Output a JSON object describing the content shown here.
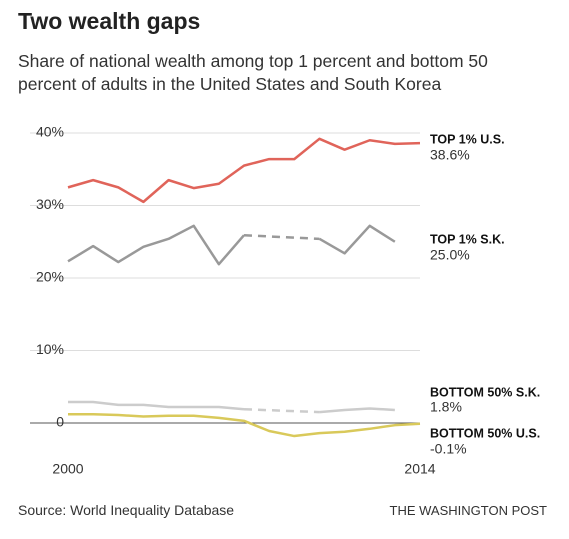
{
  "chart_data": {
    "type": "line",
    "title": "Two wealth gaps",
    "subtitle": "Share of national wealth among top 1 percent and bottom 50 percent of adults in the United States and South Korea",
    "source": "Source: World Inequality Database",
    "credit": "THE WASHINGTON POST",
    "x": [
      2000,
      2001,
      2002,
      2003,
      2004,
      2005,
      2006,
      2007,
      2008,
      2009,
      2010,
      2011,
      2012,
      2013,
      2014
    ],
    "xlim": [
      2000,
      2014
    ],
    "xticks": [
      2000,
      2014
    ],
    "ylim": [
      -3,
      40
    ],
    "yticks": [
      0,
      {
        "value": 10,
        "label": "10%"
      },
      {
        "value": 20,
        "label": "20%"
      },
      {
        "value": 30,
        "label": "30%"
      },
      {
        "value": 40,
        "label": "40%"
      }
    ],
    "grid": true,
    "series": [
      {
        "name": "TOP 1% U.S.",
        "color": "#e0645a",
        "values": [
          32.5,
          33.5,
          32.5,
          30.5,
          33.5,
          32.4,
          33,
          35.5,
          36.4,
          36.4,
          39.2,
          37.7,
          39,
          38.5,
          38.6
        ],
        "value_labels": [
          null,
          null,
          null,
          null,
          null,
          null,
          null,
          null,
          null,
          null,
          null,
          null,
          null,
          null,
          "38.6%"
        ]
      },
      {
        "name": "TOP 1% S.K.",
        "color": "#999999",
        "values": [
          22.3,
          24.4,
          22.2,
          24.3,
          25.4,
          27.2,
          21.9,
          25.9,
          null,
          null,
          25.4,
          23.4,
          27.2,
          25.0,
          null
        ],
        "value_labels": [
          null,
          null,
          null,
          null,
          null,
          null,
          null,
          null,
          null,
          null,
          null,
          null,
          null,
          "25.0%",
          null
        ]
      },
      {
        "name": "BOTTOM 50% S.K.",
        "color": "#cccccc",
        "values": [
          2.9,
          2.9,
          2.5,
          2.5,
          2.2,
          2.2,
          2.2,
          1.9,
          null,
          null,
          1.5,
          1.8,
          2.0,
          1.8,
          null
        ],
        "value_labels": [
          null,
          null,
          null,
          null,
          null,
          null,
          null,
          null,
          null,
          null,
          null,
          null,
          null,
          "1.8%",
          null
        ]
      },
      {
        "name": "BOTTOM 50% U.S.",
        "color": "#d9c95a",
        "values": [
          1.2,
          1.2,
          1.1,
          0.9,
          1.0,
          1.0,
          0.7,
          0.3,
          -1.1,
          -1.8,
          -1.4,
          -1.2,
          -0.8,
          -0.3,
          -0.1
        ],
        "value_labels": [
          null,
          null,
          null,
          null,
          null,
          null,
          null,
          null,
          null,
          null,
          null,
          null,
          null,
          null,
          "-0.1%"
        ]
      }
    ]
  }
}
